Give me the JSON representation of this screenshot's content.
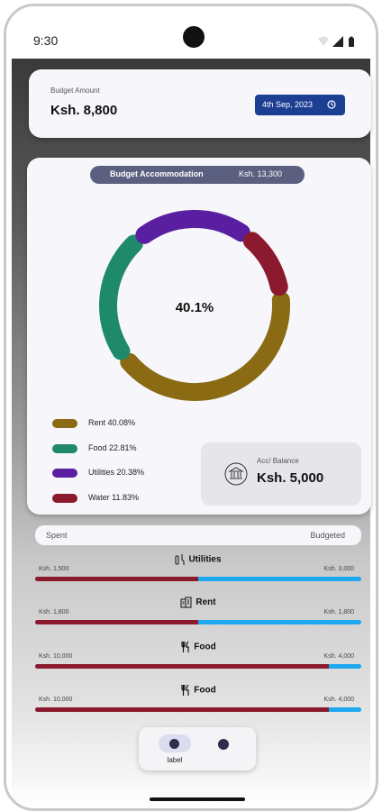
{
  "status": {
    "time": "9:30"
  },
  "budget": {
    "label": "Budget Amount",
    "amount": "Ksh. 8,800",
    "date": "4th Sep, 2023"
  },
  "accommodation": {
    "title": "Budget Accommodation",
    "total": "Ksh. 13,300",
    "center_label": "40.1%",
    "segments": [
      {
        "name": "Rent",
        "percent": 40.08,
        "color": "#8a6a12"
      },
      {
        "name": "Food",
        "percent": 22.81,
        "color": "#1e8a6a"
      },
      {
        "name": "Utilities",
        "percent": 20.38,
        "color": "#5a1fa0"
      },
      {
        "name": "Water",
        "percent": 11.83,
        "color": "#8b1a2e"
      }
    ],
    "legend": [
      {
        "label": "Rent  40.08%",
        "color": "#8a6a12"
      },
      {
        "label": "Food  22.81%",
        "color": "#1e8a6a"
      },
      {
        "label": "Utilities  20.38%",
        "color": "#5a1fa0"
      },
      {
        "label": "Water  11.83%",
        "color": "#8b1a2e"
      }
    ],
    "balance": {
      "label": "Acc/ Balance",
      "value": "Ksh. 5,000"
    }
  },
  "spending": {
    "spent_label": "Spent",
    "budgeted_label": "Budgeted",
    "categories": [
      {
        "name": "Utilities",
        "icon": "utilities-icon",
        "spent": "Ksh. 1,500",
        "budgeted": "Ksh. 3,000",
        "ratio": 0.5
      },
      {
        "name": "Rent",
        "icon": "building-icon",
        "spent": "Ksh. 1,800",
        "budgeted": "Ksh. 1,800",
        "ratio": 0.5
      },
      {
        "name": "Food",
        "icon": "fork-knife-icon",
        "spent": "Ksh. 10,000",
        "budgeted": "Ksh. 4,000",
        "ratio": 0.9
      },
      {
        "name": "Food",
        "icon": "fork-knife-icon",
        "spent": "Ksh. 10,000",
        "budgeted": "Ksh. 4,000",
        "ratio": 0.9
      }
    ],
    "colors": {
      "spent": "#8b1a2e",
      "remaining": "#1da8f0"
    }
  },
  "nav": {
    "item1_label": "label"
  }
}
